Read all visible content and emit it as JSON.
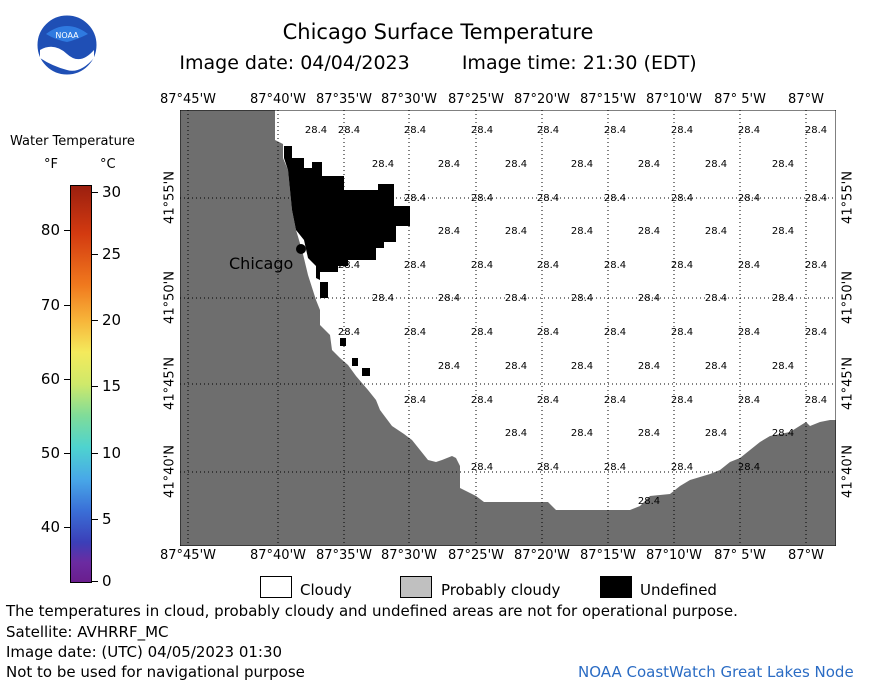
{
  "title": "Chicago Surface Temperature",
  "image_date_label": "Image date: 04/04/2023",
  "image_time_label": "Image time: 21:30 (EDT)",
  "logo_text": "NOAA",
  "legend": {
    "title": "Water Temperature",
    "unit_f": "°F",
    "unit_c": "°C",
    "f_ticks": [
      "80",
      "70",
      "60",
      "50",
      "40"
    ],
    "c_ticks": [
      "30",
      "25",
      "20",
      "15",
      "10",
      "5",
      "0"
    ]
  },
  "lon_labels": [
    "87°45'W",
    "87°40'W",
    "87°35'W",
    "87°30'W",
    "87°25'W",
    "87°20'W",
    "87°15'W",
    "87°10'W",
    "87° 5'W",
    "87°W"
  ],
  "lat_labels": [
    "41°55'N",
    "41°50'N",
    "41°45'N",
    "41°40'N"
  ],
  "city_label": "Chicago",
  "temperature_value": "28.4",
  "sst_labels": [
    {
      "row": 0,
      "cols": [
        1,
        2,
        3,
        4,
        5,
        6,
        7,
        8,
        9
      ]
    },
    {
      "row": 1,
      "cols": [
        2,
        3,
        4,
        5,
        6,
        7,
        8,
        9
      ]
    },
    {
      "row": 2,
      "cols": [
        2,
        3,
        4,
        5,
        6,
        7,
        8,
        9
      ]
    },
    {
      "row": 3,
      "cols": [
        3,
        4,
        5,
        6,
        7,
        8,
        9
      ]
    },
    {
      "row": 4,
      "cols": [
        2,
        3,
        4,
        5,
        6,
        7,
        8,
        9
      ]
    },
    {
      "row": 5,
      "cols": [
        2,
        3,
        4,
        5,
        6,
        7,
        8,
        9
      ]
    },
    {
      "row": 6,
      "cols": [
        2,
        3,
        4,
        5,
        6,
        7,
        8,
        9
      ]
    },
    {
      "row": 7,
      "cols": [
        3,
        4,
        5,
        6,
        7,
        8,
        9
      ]
    },
    {
      "row": 8,
      "cols": [
        3,
        4,
        5,
        6,
        7,
        8,
        9
      ]
    },
    {
      "row": 9,
      "cols": [
        4,
        5,
        6,
        7,
        8,
        9
      ]
    },
    {
      "row": 10,
      "cols": [
        4,
        5,
        6,
        7,
        8
      ]
    },
    {
      "row": 11,
      "cols": [
        6
      ]
    }
  ],
  "cloud_legend": {
    "cloudy": "Cloudy",
    "probably_cloudy": "Probably cloudy",
    "undefined": "Undefined"
  },
  "colors": {
    "land": "#6e6e6e",
    "cloudy": "#ffffff",
    "probably_cloudy": "#c0c0c0",
    "undefined": "#000000",
    "credit": "#2b6cc4"
  },
  "footer": {
    "disclaimer": "The temperatures in cloud, probably cloudy and undefined areas are not for operational purpose.",
    "satellite": "Satellite: AVHRRF_MC",
    "utc_date": "Image date: (UTC) 04/05/2023  01:30",
    "nav_warning": "Not to be used for navigational purpose",
    "credit": "NOAA CoastWatch Great Lakes Node"
  }
}
